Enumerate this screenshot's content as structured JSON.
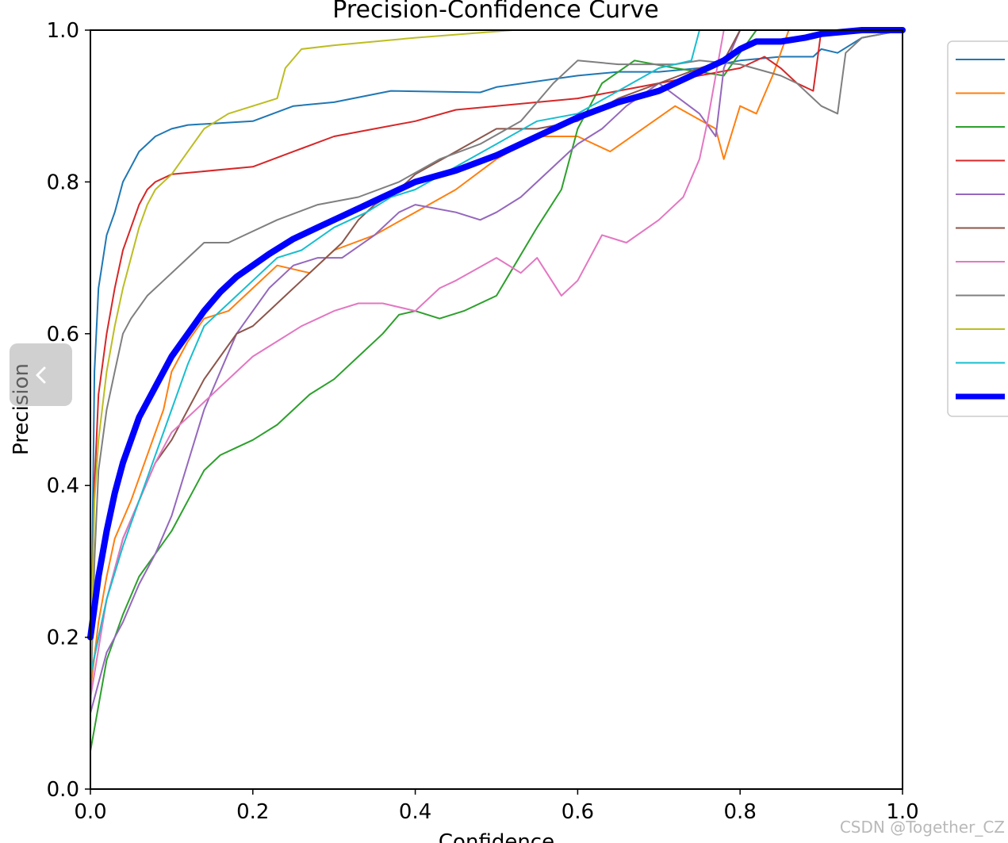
{
  "chart_data": {
    "type": "line",
    "title": "Precision-Confidence Curve",
    "xlabel": "Confidence",
    "ylabel": "Precision",
    "xlim": [
      0,
      1
    ],
    "ylim": [
      0,
      1
    ],
    "x_ticks": [
      "0.0",
      "0.2",
      "0.4",
      "0.6",
      "0.8",
      "1.0"
    ],
    "y_ticks": [
      "0.0",
      "0.2",
      "0.4",
      "0.6",
      "0.8",
      "1.0"
    ],
    "grid": false,
    "legend_position": "upper-right-outside",
    "series": [
      {
        "color": "#1f77b4",
        "width": 2,
        "x": [
          0,
          0.005,
          0.01,
          0.02,
          0.03,
          0.04,
          0.05,
          0.06,
          0.07,
          0.08,
          0.1,
          0.12,
          0.2,
          0.25,
          0.3,
          0.37,
          0.48,
          0.5,
          0.6,
          0.65,
          0.7,
          0.75,
          0.8,
          0.85,
          0.89,
          0.9,
          0.92,
          0.95,
          1.0
        ],
        "y": [
          0.12,
          0.55,
          0.66,
          0.73,
          0.76,
          0.8,
          0.82,
          0.84,
          0.85,
          0.86,
          0.87,
          0.875,
          0.88,
          0.9,
          0.905,
          0.92,
          0.918,
          0.925,
          0.94,
          0.945,
          0.945,
          0.95,
          0.96,
          0.965,
          0.965,
          0.975,
          0.97,
          0.99,
          1.0
        ]
      },
      {
        "color": "#ff7f0e",
        "width": 2,
        "x": [
          0,
          0.01,
          0.02,
          0.03,
          0.05,
          0.07,
          0.09,
          0.1,
          0.12,
          0.14,
          0.17,
          0.2,
          0.23,
          0.27,
          0.3,
          0.35,
          0.4,
          0.45,
          0.5,
          0.55,
          0.6,
          0.64,
          0.68,
          0.72,
          0.77,
          0.78,
          0.8,
          0.82,
          0.84,
          0.86,
          1.0
        ],
        "y": [
          0.13,
          0.22,
          0.28,
          0.33,
          0.38,
          0.44,
          0.5,
          0.55,
          0.59,
          0.62,
          0.63,
          0.66,
          0.69,
          0.68,
          0.71,
          0.73,
          0.76,
          0.79,
          0.83,
          0.86,
          0.86,
          0.84,
          0.87,
          0.9,
          0.87,
          0.83,
          0.9,
          0.89,
          0.94,
          1.0,
          1.0
        ]
      },
      {
        "color": "#2ca02c",
        "width": 2,
        "x": [
          0,
          0.02,
          0.04,
          0.06,
          0.08,
          0.1,
          0.12,
          0.14,
          0.16,
          0.18,
          0.2,
          0.23,
          0.25,
          0.27,
          0.3,
          0.33,
          0.36,
          0.38,
          0.4,
          0.43,
          0.46,
          0.5,
          0.55,
          0.58,
          0.6,
          0.63,
          0.67,
          0.72,
          0.78,
          0.8,
          0.82,
          1.0
        ],
        "y": [
          0.05,
          0.17,
          0.23,
          0.28,
          0.31,
          0.34,
          0.38,
          0.42,
          0.44,
          0.45,
          0.46,
          0.48,
          0.5,
          0.52,
          0.54,
          0.57,
          0.6,
          0.625,
          0.63,
          0.62,
          0.63,
          0.65,
          0.74,
          0.79,
          0.87,
          0.93,
          0.96,
          0.95,
          0.94,
          0.97,
          1.0,
          1.0
        ]
      },
      {
        "color": "#d62728",
        "width": 2,
        "x": [
          0,
          0.005,
          0.01,
          0.02,
          0.03,
          0.04,
          0.05,
          0.06,
          0.07,
          0.08,
          0.1,
          0.2,
          0.25,
          0.3,
          0.35,
          0.4,
          0.45,
          0.5,
          0.6,
          0.65,
          0.7,
          0.75,
          0.8,
          0.83,
          0.85,
          0.87,
          0.89,
          0.9,
          1.0
        ],
        "y": [
          0.13,
          0.4,
          0.52,
          0.6,
          0.66,
          0.71,
          0.74,
          0.77,
          0.79,
          0.8,
          0.81,
          0.82,
          0.84,
          0.86,
          0.87,
          0.88,
          0.895,
          0.9,
          0.91,
          0.92,
          0.93,
          0.94,
          0.95,
          0.965,
          0.95,
          0.93,
          0.92,
          1.0,
          1.0
        ]
      },
      {
        "color": "#9467bd",
        "width": 2,
        "x": [
          0,
          0.02,
          0.04,
          0.06,
          0.08,
          0.1,
          0.12,
          0.14,
          0.16,
          0.18,
          0.2,
          0.22,
          0.25,
          0.28,
          0.31,
          0.35,
          0.38,
          0.4,
          0.45,
          0.48,
          0.5,
          0.53,
          0.55,
          0.6,
          0.63,
          0.66,
          0.7,
          0.75,
          0.77,
          0.78,
          0.8,
          1.0
        ],
        "y": [
          0.1,
          0.18,
          0.22,
          0.27,
          0.31,
          0.36,
          0.43,
          0.5,
          0.55,
          0.6,
          0.63,
          0.66,
          0.69,
          0.7,
          0.7,
          0.73,
          0.76,
          0.77,
          0.76,
          0.75,
          0.76,
          0.78,
          0.8,
          0.85,
          0.87,
          0.9,
          0.93,
          0.89,
          0.86,
          0.95,
          1.0,
          1.0
        ]
      },
      {
        "color": "#8c564b",
        "width": 2,
        "x": [
          0,
          0.02,
          0.04,
          0.06,
          0.08,
          0.1,
          0.12,
          0.14,
          0.16,
          0.18,
          0.2,
          0.22,
          0.24,
          0.26,
          0.28,
          0.31,
          0.33,
          0.35,
          0.38,
          0.4,
          0.45,
          0.5,
          0.55,
          0.6,
          0.65,
          0.7,
          0.75,
          0.78,
          0.8,
          1.0
        ],
        "y": [
          0.15,
          0.25,
          0.33,
          0.38,
          0.43,
          0.46,
          0.5,
          0.54,
          0.57,
          0.6,
          0.61,
          0.63,
          0.65,
          0.67,
          0.69,
          0.72,
          0.75,
          0.77,
          0.79,
          0.81,
          0.84,
          0.87,
          0.87,
          0.88,
          0.91,
          0.93,
          0.95,
          0.96,
          1.0,
          1.0
        ]
      },
      {
        "color": "#e377c2",
        "width": 2,
        "x": [
          0,
          0.02,
          0.04,
          0.06,
          0.08,
          0.1,
          0.12,
          0.15,
          0.18,
          0.2,
          0.23,
          0.26,
          0.28,
          0.3,
          0.33,
          0.36,
          0.4,
          0.43,
          0.45,
          0.5,
          0.53,
          0.55,
          0.58,
          0.6,
          0.63,
          0.66,
          0.7,
          0.73,
          0.75,
          0.76,
          0.78,
          1.0
        ],
        "y": [
          0.12,
          0.25,
          0.33,
          0.38,
          0.43,
          0.47,
          0.49,
          0.52,
          0.55,
          0.57,
          0.59,
          0.61,
          0.62,
          0.63,
          0.64,
          0.64,
          0.63,
          0.66,
          0.67,
          0.7,
          0.68,
          0.7,
          0.65,
          0.67,
          0.73,
          0.72,
          0.75,
          0.78,
          0.83,
          0.88,
          1.0,
          1.0
        ]
      },
      {
        "color": "#7f7f7f",
        "width": 2,
        "x": [
          0,
          0.005,
          0.01,
          0.02,
          0.03,
          0.04,
          0.05,
          0.07,
          0.09,
          0.12,
          0.14,
          0.17,
          0.19,
          0.23,
          0.28,
          0.33,
          0.38,
          0.43,
          0.48,
          0.53,
          0.57,
          0.6,
          0.65,
          0.72,
          0.75,
          0.8,
          0.85,
          0.87,
          0.9,
          0.92,
          0.93,
          0.95,
          1.0
        ],
        "y": [
          0.1,
          0.3,
          0.42,
          0.5,
          0.55,
          0.6,
          0.62,
          0.65,
          0.67,
          0.7,
          0.72,
          0.72,
          0.73,
          0.75,
          0.77,
          0.78,
          0.8,
          0.83,
          0.85,
          0.88,
          0.93,
          0.96,
          0.955,
          0.955,
          0.96,
          0.955,
          0.94,
          0.93,
          0.9,
          0.89,
          0.97,
          0.99,
          1.0
        ]
      },
      {
        "color": "#bcbd22",
        "width": 2,
        "x": [
          0,
          0.005,
          0.01,
          0.02,
          0.03,
          0.04,
          0.05,
          0.06,
          0.07,
          0.08,
          0.1,
          0.12,
          0.14,
          0.17,
          0.2,
          0.23,
          0.24,
          0.26,
          0.3,
          0.4,
          0.52,
          1.0
        ],
        "y": [
          0.15,
          0.38,
          0.46,
          0.55,
          0.61,
          0.66,
          0.7,
          0.74,
          0.77,
          0.79,
          0.81,
          0.84,
          0.87,
          0.89,
          0.9,
          0.91,
          0.95,
          0.975,
          0.98,
          0.99,
          1.0,
          1.0
        ]
      },
      {
        "color": "#17becf",
        "width": 2,
        "x": [
          0,
          0.02,
          0.04,
          0.06,
          0.08,
          0.1,
          0.12,
          0.14,
          0.17,
          0.2,
          0.23,
          0.26,
          0.3,
          0.34,
          0.37,
          0.4,
          0.45,
          0.5,
          0.55,
          0.6,
          0.65,
          0.7,
          0.74,
          0.75,
          1.0
        ],
        "y": [
          0.15,
          0.25,
          0.32,
          0.38,
          0.44,
          0.5,
          0.56,
          0.61,
          0.64,
          0.67,
          0.7,
          0.71,
          0.74,
          0.76,
          0.78,
          0.79,
          0.82,
          0.85,
          0.88,
          0.89,
          0.92,
          0.95,
          0.96,
          1.0,
          1.0
        ]
      },
      {
        "color": "#0000ff",
        "width": 8,
        "x": [
          0,
          0.01,
          0.02,
          0.03,
          0.04,
          0.05,
          0.06,
          0.08,
          0.1,
          0.12,
          0.14,
          0.16,
          0.18,
          0.2,
          0.22,
          0.25,
          0.28,
          0.31,
          0.35,
          0.38,
          0.4,
          0.45,
          0.5,
          0.55,
          0.6,
          0.65,
          0.7,
          0.72,
          0.75,
          0.78,
          0.8,
          0.82,
          0.85,
          0.88,
          0.9,
          0.93,
          0.95,
          1.0
        ],
        "y": [
          0.2,
          0.28,
          0.34,
          0.39,
          0.43,
          0.46,
          0.49,
          0.53,
          0.57,
          0.6,
          0.63,
          0.655,
          0.675,
          0.69,
          0.705,
          0.725,
          0.74,
          0.755,
          0.775,
          0.79,
          0.8,
          0.815,
          0.835,
          0.86,
          0.885,
          0.905,
          0.92,
          0.93,
          0.945,
          0.96,
          0.975,
          0.985,
          0.985,
          0.99,
          0.995,
          0.998,
          1.0,
          1.0
        ]
      }
    ]
  },
  "ui": {
    "nav_icon": "chevron-left-icon",
    "watermark": "CSDN @Together_CZ"
  }
}
